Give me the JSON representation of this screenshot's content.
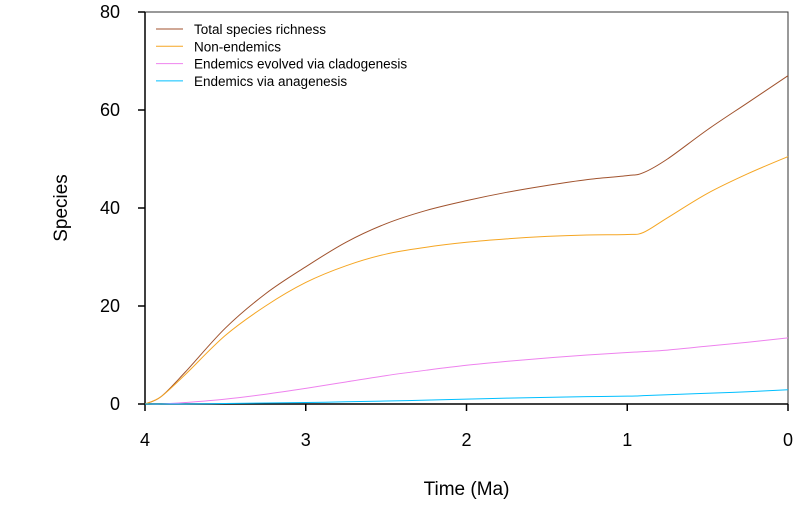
{
  "chart_data": {
    "type": "line",
    "title": "",
    "xlabel": "Time (Ma)",
    "ylabel": "Species",
    "xlim": [
      4,
      0
    ],
    "ylim": [
      0,
      80
    ],
    "x_ticks": [
      4,
      3,
      2,
      1,
      0
    ],
    "y_ticks": [
      0,
      20,
      40,
      60,
      80
    ],
    "grid": false,
    "legend_position": "top-left",
    "x": [
      4.0,
      3.9,
      3.75,
      3.5,
      3.25,
      3.0,
      2.75,
      2.5,
      2.25,
      2.0,
      1.75,
      1.5,
      1.25,
      1.0,
      0.9,
      0.75,
      0.5,
      0.25,
      0.0
    ],
    "series": [
      {
        "name": "Total species richness",
        "color": "#a0522d",
        "values": [
          0,
          1.5,
          6.5,
          15.5,
          22.5,
          28,
          33,
          36.8,
          39.5,
          41.5,
          43.2,
          44.6,
          45.8,
          46.6,
          47.2,
          50,
          56,
          61.5,
          67
        ]
      },
      {
        "name": "Non-endemics",
        "color": "#f5a623",
        "values": [
          0,
          1.5,
          6,
          14,
          20,
          24.8,
          28.2,
          30.6,
          32,
          33,
          33.7,
          34.2,
          34.5,
          34.6,
          35,
          38,
          43,
          47,
          50.5
        ]
      },
      {
        "name": "Endemics evolved via cladogenesis",
        "color": "#ee82ee",
        "values": [
          0,
          0,
          0.3,
          1,
          2,
          3.2,
          4.5,
          5.8,
          6.9,
          7.9,
          8.7,
          9.4,
          10,
          10.5,
          10.7,
          11,
          11.8,
          12.6,
          13.5
        ]
      },
      {
        "name": "Endemics via anagenesis",
        "color": "#00bfff",
        "values": [
          0,
          0,
          0,
          0.1,
          0.2,
          0.3,
          0.45,
          0.6,
          0.8,
          1.0,
          1.2,
          1.35,
          1.5,
          1.6,
          1.7,
          1.9,
          2.2,
          2.5,
          2.9
        ]
      }
    ]
  }
}
